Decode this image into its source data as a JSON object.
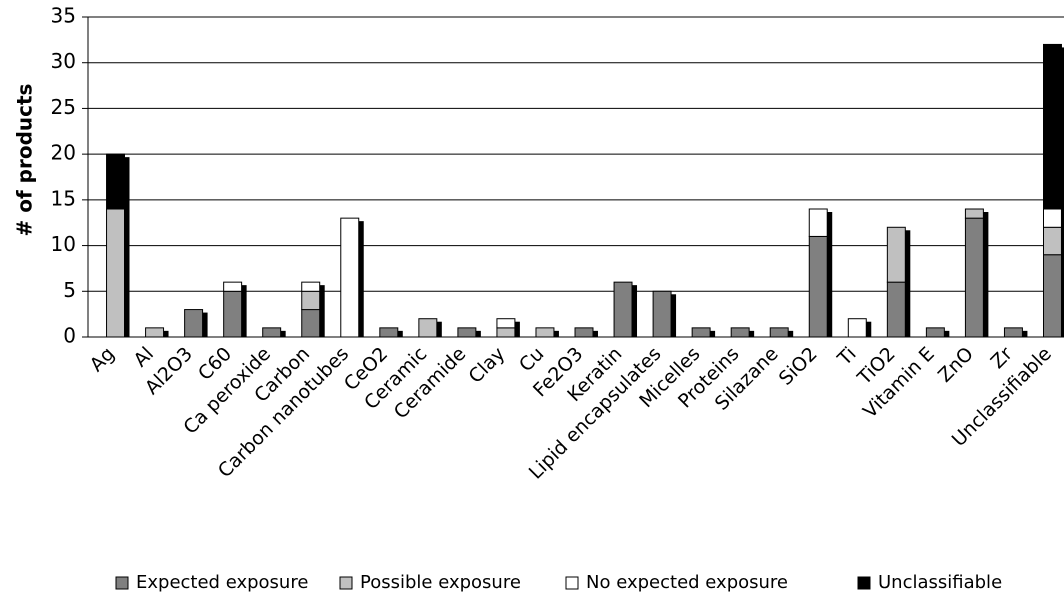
{
  "chart_data": {
    "type": "stacked_bar",
    "y_label": "# of products",
    "categories": [
      "Ag",
      "Al",
      "Al2O3",
      "C60",
      "Ca peroxide",
      "Carbon",
      "Carbon nanotubes",
      "CeO2",
      "Ceramic",
      "Ceramide",
      "Clay",
      "Cu",
      "Fe2O3",
      "Keratin",
      "Lipid encapsulates",
      "Micelles",
      "Proteins",
      "Silazane",
      "SiO2",
      "Ti",
      "TiO2",
      "Vitamin E",
      "ZnO",
      "Zr",
      "Unclassifiable"
    ],
    "series": [
      {
        "name": "Expected exposure",
        "color": "#808080",
        "values": [
          0,
          0,
          3,
          5,
          1,
          3,
          0,
          1,
          0,
          1,
          0,
          0,
          1,
          6,
          5,
          1,
          1,
          1,
          11,
          0,
          6,
          1,
          13,
          1,
          9
        ]
      },
      {
        "name": "Possible exposure",
        "color": "#c0c0c0",
        "values": [
          14,
          1,
          0,
          0,
          0,
          2,
          0,
          0,
          2,
          0,
          1,
          1,
          0,
          0,
          0,
          0,
          0,
          0,
          0,
          0,
          6,
          0,
          1,
          0,
          3
        ]
      },
      {
        "name": "No expected exposure",
        "color": "#ffffff",
        "values": [
          0,
          0,
          0,
          1,
          0,
          1,
          13,
          0,
          0,
          0,
          1,
          0,
          0,
          0,
          0,
          0,
          0,
          0,
          3,
          2,
          0,
          0,
          0,
          0,
          2
        ]
      },
      {
        "name": "Unclassifiable",
        "color": "#000000",
        "values": [
          6,
          0,
          0,
          0,
          0,
          0,
          0,
          0,
          0,
          0,
          0,
          0,
          0,
          0,
          0,
          0,
          0,
          0,
          0,
          0,
          0,
          0,
          0,
          0,
          18
        ]
      }
    ],
    "ylim": [
      0,
      35
    ],
    "yticks": [
      0,
      5,
      10,
      15,
      20,
      25,
      30,
      35
    ],
    "grid": true,
    "legend": "bottom"
  }
}
